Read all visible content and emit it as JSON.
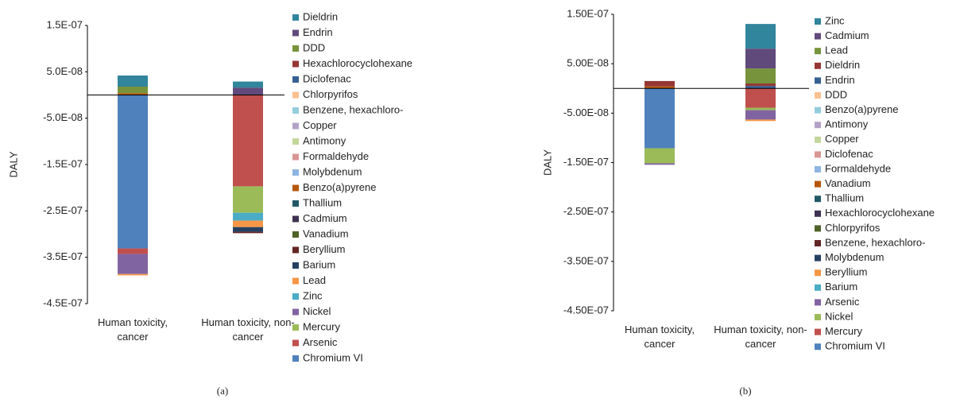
{
  "chart_data": [
    {
      "type": "bar",
      "stacked": true,
      "label": "(a)",
      "y_label": "DALY",
      "categories": [
        "Human toxicity, cancer",
        "Human toxicity, non-cancer"
      ],
      "ylim": [
        -4.5e-07,
        1.5e-07
      ],
      "yticks": [
        {
          "value": 1.5e-07,
          "label": "1.5E-07"
        },
        {
          "value": 5e-08,
          "label": "5.0E-08"
        },
        {
          "value": -5e-08,
          "label": "-5.0E-08"
        },
        {
          "value": -1.5e-07,
          "label": "-1.5E-07"
        },
        {
          "value": -2.5e-07,
          "label": "-2.5E-07"
        },
        {
          "value": -3.5e-07,
          "label": "-3.5E-07"
        },
        {
          "value": -4.5e-07,
          "label": "-4.5E-07"
        }
      ],
      "series": [
        {
          "name": "Dieldrin",
          "color": "#31859c",
          "values": [
            2.4e-08,
            1.3e-08
          ]
        },
        {
          "name": "Endrin",
          "color": "#604a7b",
          "values": [
            0,
            1.6e-08
          ]
        },
        {
          "name": "DDD",
          "color": "#77933c",
          "values": [
            1.4e-08,
            0
          ]
        },
        {
          "name": "Hexachlorocyclohexane",
          "color": "#953735",
          "values": [
            0,
            0
          ]
        },
        {
          "name": "Diclofenac",
          "color": "#376092",
          "values": [
            0,
            0
          ]
        },
        {
          "name": "Chlorpyrifos",
          "color": "#fac090",
          "values": [
            0,
            0
          ]
        },
        {
          "name": "Benzene, hexachloro-",
          "color": "#93cddd",
          "values": [
            0,
            0
          ]
        },
        {
          "name": "Copper",
          "color": "#b3a2c7",
          "values": [
            0,
            0
          ]
        },
        {
          "name": "Antimony",
          "color": "#c3d69b",
          "values": [
            0,
            0
          ]
        },
        {
          "name": "Formaldehyde",
          "color": "#d99694",
          "values": [
            0,
            0
          ]
        },
        {
          "name": "Molybdenum",
          "color": "#8eb4e3",
          "values": [
            0,
            0
          ]
        },
        {
          "name": "Benzo(a)pyrene",
          "color": "#b65708",
          "values": [
            4e-09,
            0
          ]
        },
        {
          "name": "Thallium",
          "color": "#215968",
          "values": [
            0,
            0
          ]
        },
        {
          "name": "Cadmium",
          "color": "#3f3151",
          "values": [
            0,
            0
          ]
        },
        {
          "name": "Vanadium",
          "color": "#4f6228",
          "values": [
            0,
            0
          ]
        },
        {
          "name": "Beryllium",
          "color": "#632523",
          "values": [
            0,
            -3e-09
          ]
        },
        {
          "name": "Barium",
          "color": "#254061",
          "values": [
            0,
            -1e-08
          ]
        },
        {
          "name": "Lead",
          "color": "#f79646",
          "values": [
            -3e-09,
            -1.4e-08
          ]
        },
        {
          "name": "Zinc",
          "color": "#4bacc6",
          "values": [
            0,
            -1.7e-08
          ]
        },
        {
          "name": "Nickel",
          "color": "#8064a2",
          "values": [
            -4.3e-08,
            0
          ]
        },
        {
          "name": "Mercury",
          "color": "#9bbb59",
          "values": [
            0,
            -5.7e-08
          ]
        },
        {
          "name": "Arsenic",
          "color": "#c0504d",
          "values": [
            -1.2e-08,
            -1.97e-07
          ]
        },
        {
          "name": "Chromium VI",
          "color": "#4f81bd",
          "values": [
            -3.31e-07,
            0
          ]
        }
      ]
    },
    {
      "type": "bar",
      "stacked": true,
      "label": "(b)",
      "y_label": "DALY",
      "categories": [
        "Human toxicity, cancer",
        "Human toxicity, non-cancer"
      ],
      "ylim": [
        -4.5e-07,
        1.5e-07
      ],
      "yticks": [
        {
          "value": 1.5e-07,
          "label": "1.50E-07"
        },
        {
          "value": 5e-08,
          "label": "5.00E-08"
        },
        {
          "value": -5e-08,
          "label": "-5.00E-08"
        },
        {
          "value": -1.5e-07,
          "label": "-1.50E-07"
        },
        {
          "value": -2.5e-07,
          "label": "-2.50E-07"
        },
        {
          "value": -3.5e-07,
          "label": "-3.50E-07"
        },
        {
          "value": -4.5e-07,
          "label": "-4.50E-07"
        }
      ],
      "series": [
        {
          "name": "Zinc",
          "color": "#31859c",
          "values": [
            0,
            5e-08
          ]
        },
        {
          "name": "Cadmium",
          "color": "#604a7b",
          "values": [
            0,
            4e-08
          ]
        },
        {
          "name": "Lead",
          "color": "#77933c",
          "values": [
            0,
            3.05e-08
          ]
        },
        {
          "name": "Dieldrin",
          "color": "#953735",
          "values": [
            1.1e-08,
            5e-09
          ]
        },
        {
          "name": "Endrin",
          "color": "#376092",
          "values": [
            0,
            5e-09
          ]
        },
        {
          "name": "DDD",
          "color": "#fac090",
          "values": [
            0,
            0
          ]
        },
        {
          "name": "Benzo(a)pyrene",
          "color": "#93cddd",
          "values": [
            0,
            0
          ]
        },
        {
          "name": "Antimony",
          "color": "#b3a2c7",
          "values": [
            0,
            0
          ]
        },
        {
          "name": "Copper",
          "color": "#c3d69b",
          "values": [
            0,
            0
          ]
        },
        {
          "name": "Diclofenac",
          "color": "#d99694",
          "values": [
            0,
            0
          ]
        },
        {
          "name": "Formaldehyde",
          "color": "#8eb4e3",
          "values": [
            0,
            0
          ]
        },
        {
          "name": "Vanadium",
          "color": "#b65708",
          "values": [
            4e-09,
            0
          ]
        },
        {
          "name": "Thallium",
          "color": "#215968",
          "values": [
            0,
            0
          ]
        },
        {
          "name": "Hexachlorocyclohexane",
          "color": "#3f3151",
          "values": [
            0,
            0
          ]
        },
        {
          "name": "Chlorpyrifos",
          "color": "#4f6228",
          "values": [
            0,
            0
          ]
        },
        {
          "name": "Benzene, hexachloro-",
          "color": "#632523",
          "values": [
            0,
            0
          ]
        },
        {
          "name": "Molybdenum",
          "color": "#254061",
          "values": [
            0,
            0
          ]
        },
        {
          "name": "Beryllium",
          "color": "#f79646",
          "values": [
            0,
            -3e-09
          ]
        },
        {
          "name": "Barium",
          "color": "#4bacc6",
          "values": [
            0,
            0
          ]
        },
        {
          "name": "Arsenic",
          "color": "#8064a2",
          "values": [
            -3e-09,
            -1.9e-08
          ]
        },
        {
          "name": "Nickel",
          "color": "#9bbb59",
          "values": [
            -3.05e-08,
            -5e-09
          ]
        },
        {
          "name": "Mercury",
          "color": "#c0504d",
          "values": [
            0,
            -3.9e-08
          ]
        },
        {
          "name": "Chromium VI",
          "color": "#4f81bd",
          "values": [
            -1.21e-07,
            0
          ]
        }
      ]
    }
  ]
}
